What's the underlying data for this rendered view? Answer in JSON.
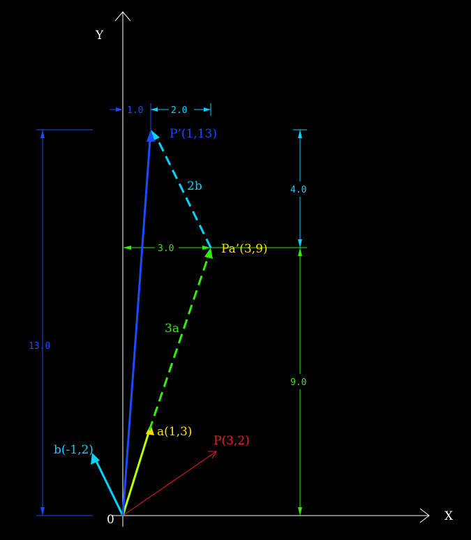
{
  "axes": {
    "x_label": "X",
    "y_label": "Y",
    "origin_label": "0"
  },
  "points": {
    "P_prime": {
      "label": "P’(1,13)",
      "color": "#1a4cff"
    },
    "Pa_prime": {
      "label": "Pa’(3,9)",
      "color": "#ffdf00"
    },
    "a": {
      "label": "a(1,3)",
      "color": "#ffdf00"
    },
    "b": {
      "label": "b(-1,2)",
      "color": "#00d4ff"
    },
    "P": {
      "label": "P(3,2)",
      "color": "#ff1a1a"
    }
  },
  "vectors": {
    "two_b": {
      "label": "2b",
      "color": "#00d4ff"
    },
    "three_a": {
      "label": "3a",
      "color": "#33ee00"
    }
  },
  "dimensions": {
    "top_left": "1.0",
    "top_right": "2.0",
    "horizontal_3": "3.0",
    "vertical_13": "13.0",
    "vertical_4": "4.0",
    "vertical_9": "9.0"
  },
  "colors": {
    "axis": "#ffffff",
    "blue_dim": "#1a4cff",
    "cyan_dim": "#00d4ff",
    "green_dim": "#33ee00"
  }
}
